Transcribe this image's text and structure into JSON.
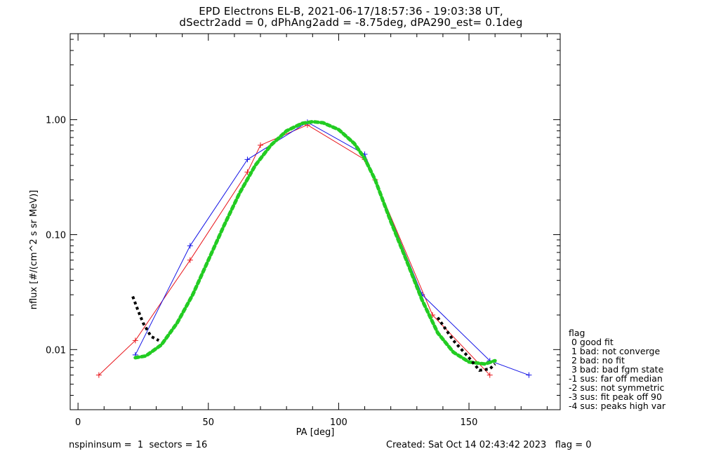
{
  "title_line1": "EPD Electrons EL-B, 2021-06-17/18:57:36 - 19:03:38 UT,",
  "title_line2": "dSectr2add = 0, dPhAng2add = -8.75deg, dPA290_est=   0.1deg",
  "legend": {
    "title": "flag",
    "items": [
      " 0 good fit",
      " 1 bad: not converge",
      " 2 bad: no fit",
      " 3 bad: bad fgm state",
      "-1 sus: far off median",
      "-2 sus: not symmetric",
      "-3 sus: fit peak off 90",
      "-4 sus: peaks high var"
    ]
  },
  "footer": {
    "left": "nspininsum =  1  sectors = 16",
    "right": "Created: Sat Oct 14 02:43:42 2023   flag = 0"
  },
  "chart_data": {
    "type": "line",
    "xlabel": "PA [deg]",
    "ylabel": "nflux [#/(cm^2 s sr MeV)]",
    "xlim": [
      -3,
      185
    ],
    "ylim": [
      0.003,
      5.6
    ],
    "yscale": "log",
    "xticks": [
      0,
      50,
      100,
      150
    ],
    "yticks": [
      {
        "value": 0.01,
        "label": "0.01"
      },
      {
        "value": 0.1,
        "label": "0.10"
      },
      {
        "value": 1.0,
        "label": "1.00"
      }
    ],
    "colors": {
      "red_traces": "#e8141a",
      "blue_traces": "#1414e6",
      "fit_green": "#22cc22",
      "fit_black": "#000000"
    },
    "series": [
      {
        "color": "red",
        "x": [
          8,
          22,
          43,
          65,
          70,
          88,
          110,
          114,
          136,
          158
        ],
        "y": [
          0.006,
          0.012,
          0.06,
          0.35,
          0.6,
          0.9,
          0.45,
          0.3,
          0.02,
          0.006
        ]
      },
      {
        "color": "blue",
        "x": [
          22,
          43,
          65,
          88,
          110,
          132,
          158,
          173
        ],
        "y": [
          0.009,
          0.08,
          0.45,
          0.95,
          0.5,
          0.03,
          0.008,
          0.006
        ]
      },
      {
        "color": "green",
        "x": [
          22,
          26,
          32,
          38,
          44,
          50,
          56,
          62,
          68,
          74,
          80,
          86,
          90,
          94,
          100,
          106,
          110,
          114,
          120,
          126,
          132,
          138,
          144,
          150,
          156,
          160
        ],
        "y": [
          0.0085,
          0.0088,
          0.011,
          0.017,
          0.03,
          0.06,
          0.12,
          0.23,
          0.4,
          0.6,
          0.8,
          0.93,
          0.96,
          0.94,
          0.82,
          0.62,
          0.46,
          0.3,
          0.13,
          0.06,
          0.027,
          0.014,
          0.0095,
          0.0078,
          0.0075,
          0.008
        ]
      },
      {
        "color": "black",
        "x": [
          21,
          23,
          25,
          28,
          31
        ],
        "y": [
          0.029,
          0.022,
          0.017,
          0.013,
          0.012
        ]
      },
      {
        "color": "black",
        "x": [
          138,
          144,
          150,
          154,
          158,
          160
        ],
        "y": [
          0.019,
          0.012,
          0.0085,
          0.0066,
          0.0068,
          0.0075
        ]
      }
    ]
  }
}
